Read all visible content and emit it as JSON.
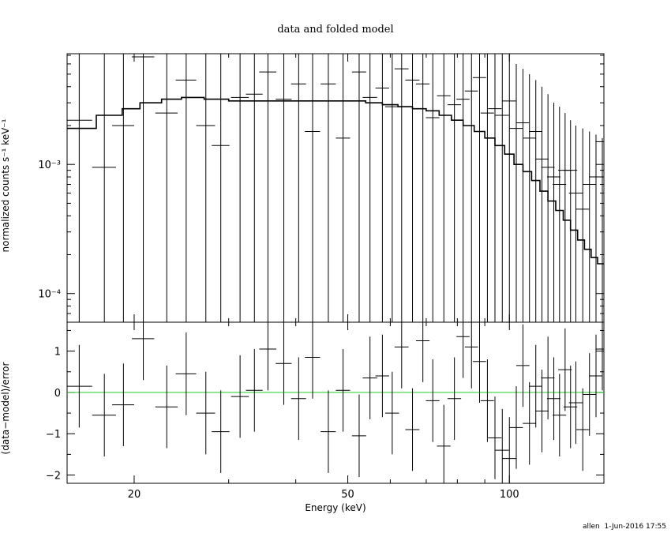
{
  "chart_data": {
    "type": "scatter",
    "title": "data and folded model",
    "xlabel": "Energy (keV)",
    "x_scale": "log",
    "xlim": [
      15,
      150
    ],
    "x_ticks": [
      {
        "value": 20,
        "label": "20"
      },
      {
        "value": 50,
        "label": "50"
      },
      {
        "value": 100,
        "label": "100"
      }
    ],
    "panels": [
      {
        "name": "spectrum",
        "ylabel": "normalized counts s⁻¹ keV⁻¹",
        "y_scale": "log",
        "ylim": [
          6e-05,
          0.0072
        ],
        "y_ticks": [
          {
            "value": 0.001,
            "label": "10⁻³"
          },
          {
            "value": 0.0001,
            "label": "10⁻⁴"
          }
        ],
        "data": {
          "x": [
            15.8,
            17.6,
            19.1,
            20.8,
            23.0,
            25.0,
            27.2,
            29.0,
            31.5,
            33.5,
            35.5,
            38.0,
            40.5,
            43.0,
            46.0,
            49.0,
            52.5,
            55.0,
            58.0,
            60.5,
            63.0,
            66.0,
            69.0,
            72.0,
            75.5,
            79.0,
            82.0,
            85.0,
            88.0,
            91.0,
            94.0,
            97.0,
            100.0,
            103.0,
            106.0,
            109.0,
            112.0,
            115.0,
            118.0,
            121.0,
            124.0,
            127.0,
            130.0,
            133.0,
            137.0,
            141.0,
            145.0,
            149.0
          ],
          "y": [
            0.0022,
            0.00095,
            0.002,
            0.0068,
            0.0025,
            0.0045,
            0.002,
            0.0014,
            0.0033,
            0.0035,
            0.0052,
            0.0032,
            0.0042,
            0.0018,
            0.0042,
            0.0016,
            0.0052,
            0.0033,
            0.0039,
            0.0028,
            0.0055,
            0.0045,
            0.0042,
            0.0023,
            0.0034,
            0.0029,
            0.0032,
            0.0037,
            0.0047,
            0.0025,
            0.0027,
            0.0024,
            0.0031,
            0.0019,
            0.0021,
            0.0016,
            0.0018,
            0.0011,
            0.00095,
            0.0008,
            0.0007,
            0.0009,
            0.0009,
            0.0006,
            0.00045,
            0.0007,
            0.0008,
            0.0015
          ],
          "x_err": [
            0.9,
            0.9,
            0.9,
            1.0,
            1.1,
            1.1,
            1.1,
            1.1,
            1.2,
            1.2,
            1.3,
            1.3,
            1.3,
            1.4,
            1.5,
            1.5,
            1.6,
            1.7,
            1.7,
            1.8,
            1.9,
            2.0,
            2.0,
            2.1,
            2.2,
            2.3,
            2.3,
            2.4,
            2.5,
            2.6,
            2.7,
            2.8,
            2.9,
            3.0,
            3.0,
            3.1,
            3.2,
            3.3,
            3.4,
            3.5,
            3.6,
            3.7,
            3.8,
            3.9,
            4.0,
            4.1,
            4.2,
            4.3
          ],
          "y_lo": [
            6e-05,
            6e-05,
            6e-05,
            6e-05,
            6e-05,
            6e-05,
            6e-05,
            6e-05,
            6e-05,
            6e-05,
            6e-05,
            6e-05,
            6e-05,
            6e-05,
            6e-05,
            6e-05,
            6e-05,
            6e-05,
            6e-05,
            6e-05,
            6e-05,
            6e-05,
            6e-05,
            6e-05,
            6e-05,
            6e-05,
            6e-05,
            6e-05,
            6e-05,
            6e-05,
            6e-05,
            6e-05,
            6e-05,
            6e-05,
            6e-05,
            6e-05,
            6e-05,
            6e-05,
            6e-05,
            6e-05,
            6e-05,
            6e-05,
            6e-05,
            6e-05,
            6e-05,
            6e-05,
            6e-05,
            6e-05
          ],
          "y_hi": [
            0.0072,
            0.0072,
            0.0072,
            0.0072,
            0.0072,
            0.0072,
            0.0072,
            0.0072,
            0.0072,
            0.0072,
            0.0072,
            0.0072,
            0.0072,
            0.0072,
            0.0072,
            0.0072,
            0.0072,
            0.0072,
            0.0072,
            0.0072,
            0.0072,
            0.0072,
            0.0072,
            0.0072,
            0.0072,
            0.0072,
            0.0072,
            0.0072,
            0.0072,
            0.0072,
            0.0072,
            0.0072,
            0.0072,
            0.006,
            0.0055,
            0.005,
            0.0045,
            0.004,
            0.0035,
            0.003,
            0.0028,
            0.0025,
            0.0022,
            0.002,
            0.0019,
            0.0018,
            0.0017,
            0.0016
          ]
        },
        "model_steps": {
          "edges": [
            15,
            17.0,
            19.0,
            20.5,
            22.5,
            24.5,
            27.0,
            30.0,
            34.0,
            38.0,
            42.0,
            46.0,
            50.0,
            54.0,
            58.0,
            62.0,
            66.0,
            70.0,
            74.0,
            78.0,
            82.0,
            86.0,
            90.0,
            94.0,
            98.0,
            102.0,
            106.0,
            110.0,
            114.0,
            118.0,
            122.0,
            126.0,
            130.0,
            134.0,
            138.0,
            142.0,
            146.0,
            150.0
          ],
          "values": [
            0.0019,
            0.0024,
            0.0027,
            0.003,
            0.0032,
            0.0033,
            0.0032,
            0.0031,
            0.0031,
            0.0031,
            0.0031,
            0.0031,
            0.0031,
            0.003,
            0.0029,
            0.0028,
            0.0027,
            0.0026,
            0.0024,
            0.0022,
            0.002,
            0.0018,
            0.0016,
            0.0014,
            0.0012,
            0.001,
            0.00088,
            0.00075,
            0.00062,
            0.00052,
            0.00044,
            0.00037,
            0.00031,
            0.00026,
            0.00022,
            0.00019,
            0.00017
          ]
        }
      },
      {
        "name": "residuals",
        "ylabel": "(data−model)/error",
        "y_scale": "linear",
        "ylim": [
          -2.2,
          1.7
        ],
        "y_ticks": [
          {
            "value": 1,
            "label": "1"
          },
          {
            "value": 0,
            "label": "0"
          },
          {
            "value": -1,
            "label": "−1"
          },
          {
            "value": -2,
            "label": "−2"
          }
        ],
        "zero_line_color": "#22cc22",
        "data": {
          "x": [
            15.8,
            17.6,
            19.1,
            20.8,
            23.0,
            25.0,
            27.2,
            29.0,
            31.5,
            33.5,
            35.5,
            38.0,
            40.5,
            43.0,
            46.0,
            49.0,
            52.5,
            55.0,
            58.0,
            60.5,
            63.0,
            66.0,
            69.0,
            72.0,
            75.5,
            79.0,
            82.0,
            85.0,
            88.0,
            91.0,
            94.0,
            97.0,
            100.0,
            103.0,
            106.0,
            109.0,
            112.0,
            115.0,
            118.0,
            121.0,
            124.0,
            127.0,
            130.0,
            133.0,
            137.0,
            141.0,
            145.0,
            149.0
          ],
          "y": [
            0.15,
            -0.55,
            -0.3,
            1.3,
            -0.35,
            0.45,
            -0.5,
            -0.95,
            -0.1,
            0.05,
            1.05,
            0.7,
            -0.15,
            0.85,
            -0.95,
            0.05,
            -1.05,
            0.35,
            0.4,
            -0.5,
            1.1,
            -0.9,
            1.25,
            -0.2,
            -1.3,
            -0.15,
            1.35,
            1.1,
            0.75,
            -0.2,
            -1.1,
            -1.4,
            -1.6,
            -0.85,
            0.65,
            -0.75,
            0.15,
            -0.45,
            0.35,
            -0.15,
            -0.55,
            0.55,
            -0.35,
            -0.25,
            -0.9,
            -0.05,
            0.4,
            1.05
          ],
          "x_err": [
            0.9,
            0.9,
            0.9,
            1.0,
            1.1,
            1.1,
            1.1,
            1.1,
            1.2,
            1.2,
            1.3,
            1.3,
            1.3,
            1.4,
            1.5,
            1.5,
            1.6,
            1.7,
            1.7,
            1.8,
            1.9,
            2.0,
            2.0,
            2.1,
            2.2,
            2.3,
            2.3,
            2.4,
            2.5,
            2.6,
            2.7,
            2.8,
            2.9,
            3.0,
            3.0,
            3.1,
            3.2,
            3.3,
            3.4,
            3.5,
            3.6,
            3.7,
            3.8,
            3.9,
            4.0,
            4.1,
            4.2,
            4.3
          ],
          "y_err": [
            1.0,
            1.0,
            1.0,
            1.0,
            1.0,
            1.0,
            1.0,
            1.0,
            1.0,
            1.0,
            1.0,
            1.0,
            1.0,
            1.0,
            1.0,
            1.0,
            1.0,
            1.0,
            1.0,
            1.0,
            1.0,
            1.0,
            1.0,
            1.0,
            1.0,
            1.0,
            1.0,
            1.0,
            1.0,
            1.0,
            1.0,
            1.0,
            1.0,
            1.0,
            1.0,
            1.0,
            1.0,
            1.0,
            1.0,
            1.0,
            1.0,
            1.0,
            1.0,
            1.0,
            1.0,
            1.0,
            1.0,
            1.0
          ]
        }
      }
    ]
  },
  "footer": {
    "user": "allen",
    "timestamp": "1-Jun-2016 17:55"
  }
}
